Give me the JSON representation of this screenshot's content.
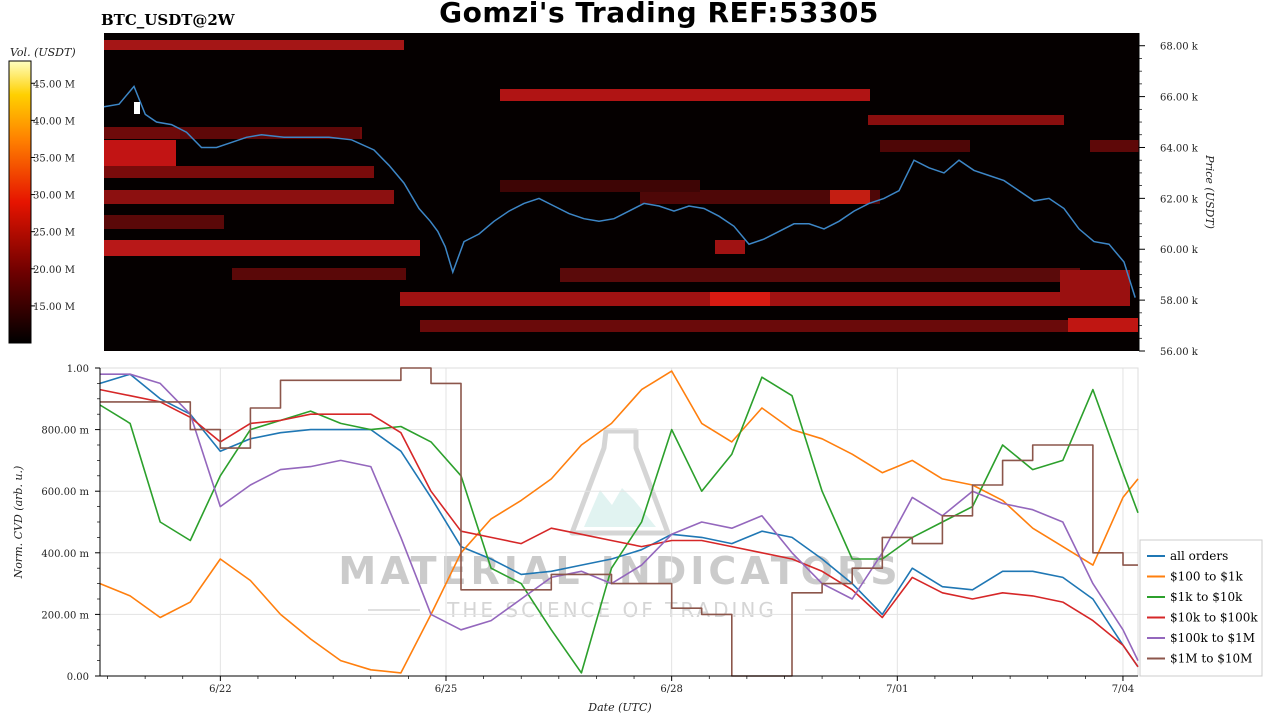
{
  "header": {
    "title": "Gomzi's Trading REF:53305",
    "pair": "BTC_USDT@2W"
  },
  "watermark": {
    "brand": "MATERIAL INDICATORS",
    "tagline": "THE SCIENCE OF TRADING"
  },
  "chart_data": [
    {
      "type": "heatmap",
      "name_shown": "",
      "ylabel": "Price (USDT)",
      "ylim": [
        56000,
        68500
      ],
      "yticks": [
        "56.00 k",
        "58.00 k",
        "60.00 k",
        "62.00 k",
        "64.00 k",
        "66.00 k",
        "68.00 k"
      ],
      "colorbar": {
        "label": "Vol. (USDT)",
        "range": [
          10,
          48
        ],
        "ticks": [
          "15.00 M",
          "20.00 M",
          "25.00 M",
          "30.00 M",
          "35.00 M",
          "40.00 M",
          "45.00 M"
        ]
      },
      "xlim": [
        20.4,
        34.2
      ],
      "price_series": {
        "color": "#3d86c6",
        "x": [
          20.4,
          20.6,
          20.8,
          20.95,
          21.1,
          21.3,
          21.5,
          21.7,
          21.9,
          22.1,
          22.3,
          22.5,
          22.8,
          23.1,
          23.4,
          23.7,
          24.0,
          24.2,
          24.4,
          24.6,
          24.75,
          24.85,
          24.95,
          25.05,
          25.2,
          25.4,
          25.6,
          25.8,
          26.0,
          26.2,
          26.4,
          26.6,
          26.8,
          27.0,
          27.2,
          27.4,
          27.6,
          27.8,
          28.0,
          28.2,
          28.4,
          28.6,
          28.8,
          29.0,
          29.2,
          29.4,
          29.6,
          29.8,
          30.0,
          30.2,
          30.4,
          30.6,
          30.8,
          31.0,
          31.2,
          31.4,
          31.6,
          31.8,
          32.0,
          32.2,
          32.4,
          32.6,
          32.8,
          33.0,
          33.2,
          33.4,
          33.6,
          33.8,
          34.0,
          34.15
        ],
        "y": [
          65600,
          65700,
          66400,
          65300,
          65000,
          64900,
          64600,
          64000,
          64000,
          64200,
          64400,
          64500,
          64400,
          64400,
          64400,
          64300,
          63900,
          63300,
          62600,
          61600,
          61100,
          60700,
          60100,
          59100,
          60300,
          60600,
          61100,
          61500,
          61800,
          62000,
          61700,
          61400,
          61200,
          61100,
          61200,
          61500,
          61800,
          61700,
          61500,
          61700,
          61600,
          61300,
          60900,
          60200,
          60400,
          60700,
          61000,
          61000,
          60800,
          61100,
          61500,
          61800,
          62000,
          62300,
          63500,
          63200,
          63000,
          63500,
          63100,
          62900,
          62700,
          62300,
          61900,
          62000,
          61600,
          60800,
          60300,
          60200,
          59500,
          58100
        ]
      }
    },
    {
      "type": "line",
      "xlabel": "Date (UTC)",
      "ylabel": "Norm. CVD (arb. u.)",
      "ylim": [
        0,
        1
      ],
      "yticks": [
        "0.00",
        "200.00 m",
        "400.00 m",
        "600.00 m",
        "800.00 m",
        "1.00"
      ],
      "xlim": [
        20.4,
        34.2
      ],
      "xticks": [
        {
          "x": 22,
          "label": "6/22"
        },
        {
          "x": 25,
          "label": "6/25"
        },
        {
          "x": 28,
          "label": "6/28"
        },
        {
          "x": 31,
          "label": "7/01"
        },
        {
          "x": 34,
          "label": "7/04"
        }
      ],
      "legend_position": "right",
      "x": [
        20.4,
        20.8,
        21.2,
        21.6,
        22.0,
        22.4,
        22.8,
        23.2,
        23.6,
        24.0,
        24.4,
        24.8,
        25.2,
        25.6,
        26.0,
        26.4,
        26.8,
        27.2,
        27.6,
        28.0,
        28.4,
        28.8,
        29.2,
        29.6,
        30.0,
        30.4,
        30.8,
        31.2,
        31.6,
        32.0,
        32.4,
        32.8,
        33.2,
        33.6,
        34.0,
        34.2
      ],
      "series": [
        {
          "name": "all orders",
          "color": "#1f77b4",
          "values": [
            0.95,
            0.98,
            0.9,
            0.85,
            0.73,
            0.77,
            0.79,
            0.8,
            0.8,
            0.8,
            0.73,
            0.58,
            0.42,
            0.38,
            0.33,
            0.34,
            0.36,
            0.38,
            0.41,
            0.46,
            0.45,
            0.43,
            0.47,
            0.45,
            0.38,
            0.3,
            0.2,
            0.35,
            0.29,
            0.28,
            0.34,
            0.34,
            0.32,
            0.25,
            0.1,
            0.03
          ]
        },
        {
          "name": "$100 to $1k",
          "color": "#ff7f0e",
          "values": [
            0.3,
            0.26,
            0.19,
            0.24,
            0.38,
            0.31,
            0.2,
            0.12,
            0.05,
            0.02,
            0.01,
            0.2,
            0.4,
            0.51,
            0.57,
            0.64,
            0.75,
            0.82,
            0.93,
            0.99,
            0.82,
            0.76,
            0.87,
            0.8,
            0.77,
            0.72,
            0.66,
            0.7,
            0.64,
            0.62,
            0.57,
            0.48,
            0.42,
            0.36,
            0.58,
            0.64
          ]
        },
        {
          "name": "$1k to $10k",
          "color": "#2ca02c",
          "values": [
            0.88,
            0.82,
            0.5,
            0.44,
            0.65,
            0.8,
            0.83,
            0.86,
            0.82,
            0.8,
            0.81,
            0.76,
            0.65,
            0.35,
            0.3,
            0.15,
            0.01,
            0.35,
            0.5,
            0.8,
            0.6,
            0.72,
            0.97,
            0.91,
            0.6,
            0.38,
            0.38,
            0.45,
            0.5,
            0.55,
            0.75,
            0.67,
            0.7,
            0.93,
            0.66,
            0.53
          ]
        },
        {
          "name": "$10k to $100k",
          "color": "#d62728",
          "values": [
            0.93,
            0.91,
            0.89,
            0.84,
            0.76,
            0.82,
            0.83,
            0.85,
            0.85,
            0.85,
            0.79,
            0.6,
            0.47,
            0.45,
            0.43,
            0.48,
            0.46,
            0.44,
            0.42,
            0.44,
            0.44,
            0.42,
            0.4,
            0.38,
            0.34,
            0.28,
            0.19,
            0.32,
            0.27,
            0.25,
            0.27,
            0.26,
            0.24,
            0.18,
            0.1,
            0.03
          ]
        },
        {
          "name": "$100k to $1M",
          "color": "#9467bd",
          "values": [
            0.98,
            0.98,
            0.95,
            0.85,
            0.55,
            0.62,
            0.67,
            0.68,
            0.7,
            0.68,
            0.45,
            0.2,
            0.15,
            0.18,
            0.25,
            0.32,
            0.34,
            0.3,
            0.36,
            0.46,
            0.5,
            0.48,
            0.52,
            0.4,
            0.3,
            0.25,
            0.4,
            0.58,
            0.52,
            0.6,
            0.56,
            0.54,
            0.5,
            0.3,
            0.15,
            0.05
          ]
        },
        {
          "name": "$1M to $10M",
          "color": "#8c564b",
          "values": [
            0.89,
            0.89,
            0.89,
            0.8,
            0.74,
            0.87,
            0.96,
            0.96,
            0.96,
            0.96,
            1.0,
            0.95,
            0.28,
            0.28,
            0.28,
            0.33,
            0.33,
            0.3,
            0.3,
            0.22,
            0.2,
            0.0,
            0.0,
            0.27,
            0.3,
            0.35,
            0.45,
            0.43,
            0.52,
            0.62,
            0.7,
            0.75,
            0.75,
            0.4,
            0.36,
            0.36
          ]
        }
      ]
    }
  ]
}
